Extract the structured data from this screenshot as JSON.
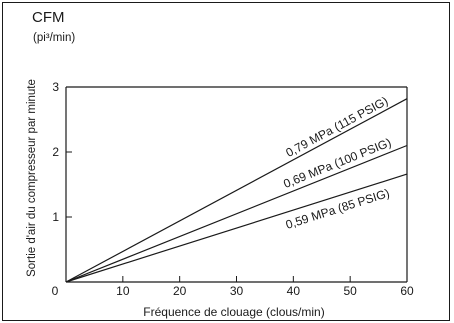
{
  "chart_data": {
    "type": "line",
    "unit_title": "CFM",
    "unit_subtitle": "(pi³/min)",
    "ylabel": "Sortie d'air du compresseur par minute",
    "xlabel": "Fréquence de clouage (clous/min)",
    "x_ticks": [
      "0",
      "10",
      "20",
      "30",
      "40",
      "50",
      "60"
    ],
    "y_ticks": [
      "1",
      "2",
      "3"
    ],
    "xlim": [
      0,
      60
    ],
    "ylim": [
      0,
      3
    ],
    "grid": false,
    "colors": {
      "line": "#1a1a1a",
      "axis": "#1a1a1a"
    },
    "series": [
      {
        "name": "0,79 MPa (115 PSIG)",
        "x": [
          0,
          60
        ],
        "y": [
          0,
          2.82
        ]
      },
      {
        "name": "0,69 MPa (100 PSIG)",
        "x": [
          0,
          60
        ],
        "y": [
          0,
          2.1
        ]
      },
      {
        "name": "0,59 MPa (85 PSIG)",
        "x": [
          0,
          60
        ],
        "y": [
          0,
          1.66
        ]
      }
    ]
  }
}
